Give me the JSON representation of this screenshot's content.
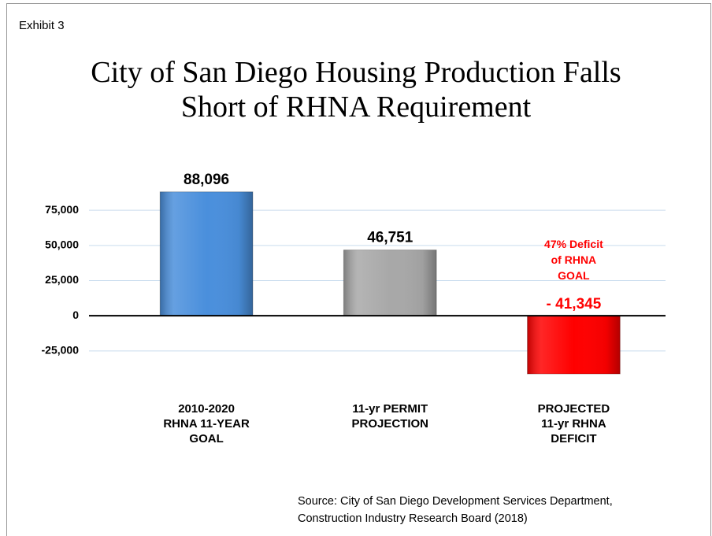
{
  "chart_data": {
    "type": "bar",
    "label": "Exhibit 3",
    "title": "City of San Diego Housing Production Falls\nShort of RHNA Requirement",
    "categories": [
      "2010-2020\nRHNA 11-YEAR\nGOAL",
      "11-yr PERMIT\nPROJECTION",
      "PROJECTED\n11-yr RHNA\nDEFICIT"
    ],
    "values": [
      88096,
      46751,
      -41345
    ],
    "value_labels": [
      "88,096",
      "46,751",
      "- 41,345"
    ],
    "colors": [
      "#4a8fdc",
      "#a8a8a8",
      "#ff0000"
    ],
    "value_label_colors": [
      "#000000",
      "#000000",
      "#ff0000"
    ],
    "annotation": {
      "text": "47% Deficit\nof RHNA\nGOAL",
      "color": "#ff0000"
    },
    "ylim": [
      -50000,
      100000
    ],
    "yticks": [
      {
        "value": -25000,
        "label": "-25,000"
      },
      0,
      {
        "value": 25000,
        "label": "25,000"
      },
      {
        "value": 50000,
        "label": "50,000"
      },
      {
        "value": 75000,
        "label": "75,000"
      }
    ],
    "grid": true,
    "source": "Source:  City of San Diego Development Services Department,\n            Construction Industry Research Board (2018)"
  }
}
